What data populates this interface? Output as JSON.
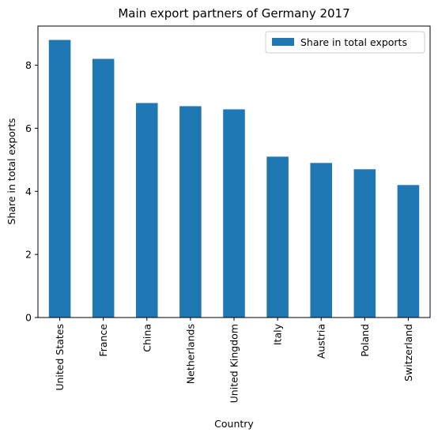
{
  "chart_data": {
    "type": "bar",
    "title": "Main export partners of Germany 2017",
    "xlabel": "Country",
    "ylabel": "Share in total exports",
    "categories": [
      "United States",
      "France",
      "China",
      "Netherlands",
      "United Kingdom",
      "Italy",
      "Austria",
      "Poland",
      "Switzerland"
    ],
    "series": [
      {
        "name": "Share in total exports",
        "values": [
          8.8,
          8.2,
          6.8,
          6.7,
          6.6,
          5.1,
          4.9,
          4.7,
          4.2
        ],
        "color": "#1f77b4"
      }
    ],
    "ylim": [
      0,
      9.24
    ],
    "yticks": [
      "0",
      "2",
      "4",
      "6",
      "8"
    ],
    "grid": false,
    "legend_position": "top-right"
  }
}
